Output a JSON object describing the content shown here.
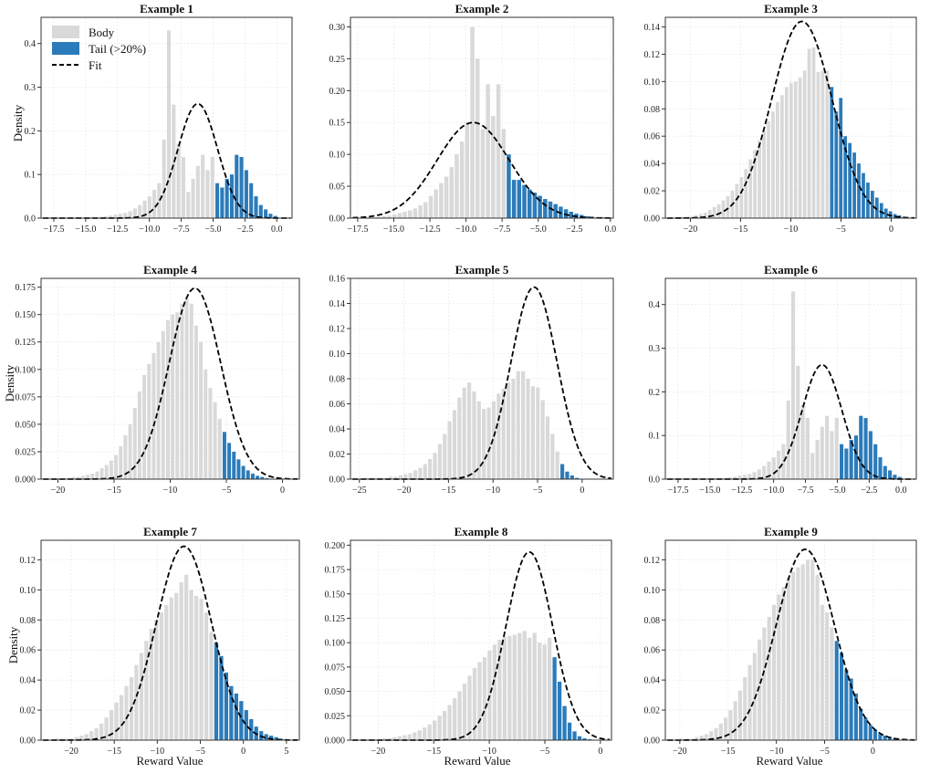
{
  "figure": {
    "legend": {
      "body_label": "Body",
      "tail_label": "Tail (>20%)",
      "fit_label": "Fit"
    },
    "ylabel": "Density",
    "xlabel": "Reward Value"
  },
  "colors": {
    "body": "#d9d9d9",
    "tail": "#2b7bba",
    "fit": "#000000",
    "grid": "#ebebeb",
    "axis": "#333333"
  },
  "chart_data": [
    {
      "type": "bar",
      "title": "Example 1",
      "xlim": [
        -18.5,
        1.2
      ],
      "ylim": [
        0,
        0.46
      ],
      "xticks": [
        -17.5,
        -15.0,
        -12.5,
        -10.0,
        -7.5,
        -5.0,
        -2.5,
        0.0
      ],
      "xtick_labels": [
        "−17.5",
        "−15.0",
        "−12.5",
        "−10.0",
        "−7.5",
        "−5.0",
        "−2.5",
        "0.0"
      ],
      "yticks": [
        0.0,
        0.1,
        0.2,
        0.3,
        0.4
      ],
      "ytick_labels": [
        "0.0",
        "0.1",
        "0.2",
        "0.3",
        "0.4"
      ],
      "bins": {
        "start": -17.4,
        "width": 0.38,
        "tail_from": -5.0,
        "values": [
          0.001,
          0.001,
          0.001,
          0.001,
          0.001,
          0.001,
          0.001,
          0.002,
          0.002,
          0.003,
          0.004,
          0.006,
          0.008,
          0.01,
          0.012,
          0.016,
          0.022,
          0.03,
          0.04,
          0.05,
          0.065,
          0.08,
          0.18,
          0.43,
          0.26,
          0.17,
          0.14,
          0.06,
          0.09,
          0.12,
          0.145,
          0.11,
          0.14,
          0.08,
          0.07,
          0.09,
          0.1,
          0.145,
          0.14,
          0.11,
          0.08,
          0.05,
          0.03,
          0.02,
          0.01,
          0.005
        ]
      },
      "fit": {
        "mean": -6.2,
        "std": 1.55,
        "peak": 0.262
      }
    },
    {
      "type": "bar",
      "title": "Example 2",
      "xlim": [
        -18.0,
        0.2
      ],
      "ylim": [
        0,
        0.315
      ],
      "xticks": [
        -17.5,
        -15.0,
        -12.5,
        -10.0,
        -7.5,
        -5.0,
        -2.5,
        0.0
      ],
      "xtick_labels": [
        "−17.5",
        "−15.0",
        "−12.5",
        "−10.0",
        "−7.5",
        "−5.0",
        "−2.5",
        "0.0"
      ],
      "yticks": [
        0.0,
        0.05,
        0.1,
        0.15,
        0.2,
        0.25,
        0.3
      ],
      "ytick_labels": [
        "0.00",
        "0.05",
        "0.10",
        "0.15",
        "0.20",
        "0.25",
        "0.30"
      ],
      "bins": {
        "start": -17.3,
        "width": 0.36,
        "tail_from": -7.5,
        "values": [
          0.001,
          0.001,
          0.001,
          0.002,
          0.003,
          0.004,
          0.006,
          0.008,
          0.01,
          0.012,
          0.015,
          0.02,
          0.025,
          0.035,
          0.045,
          0.055,
          0.065,
          0.08,
          0.1,
          0.12,
          0.15,
          0.3,
          0.25,
          0.14,
          0.21,
          0.16,
          0.21,
          0.14,
          0.1,
          0.06,
          0.06,
          0.052,
          0.045,
          0.04,
          0.035,
          0.03,
          0.026,
          0.022,
          0.018,
          0.014,
          0.01,
          0.007,
          0.005,
          0.003,
          0.002,
          0.001,
          0.001
        ]
      },
      "fit": {
        "mean": -9.5,
        "std": 2.5,
        "peak": 0.15
      }
    },
    {
      "type": "bar",
      "title": "Example 3",
      "xlim": [
        -22.5,
        2.5
      ],
      "ylim": [
        0,
        0.147
      ],
      "xticks": [
        -20,
        -15,
        -10,
        -5,
        0
      ],
      "xtick_labels": [
        "−20",
        "−15",
        "−10",
        "−5",
        "0"
      ],
      "yticks": [
        0.0,
        0.02,
        0.04,
        0.06,
        0.08,
        0.1,
        0.12,
        0.14
      ],
      "ytick_labels": [
        "0.00",
        "0.02",
        "0.04",
        "0.06",
        "0.08",
        "0.10",
        "0.12",
        "0.14"
      ],
      "bins": {
        "start": -21.0,
        "width": 0.45,
        "tail_from": -6.4,
        "values": [
          0.001,
          0.001,
          0.001,
          0.002,
          0.003,
          0.004,
          0.006,
          0.008,
          0.01,
          0.013,
          0.016,
          0.02,
          0.025,
          0.03,
          0.036,
          0.043,
          0.05,
          0.057,
          0.064,
          0.071,
          0.078,
          0.085,
          0.09,
          0.096,
          0.099,
          0.1,
          0.103,
          0.108,
          0.124,
          0.125,
          0.107,
          0.108,
          0.108,
          0.096,
          0.078,
          0.088,
          0.06,
          0.055,
          0.048,
          0.04,
          0.033,
          0.026,
          0.02,
          0.015,
          0.011,
          0.007,
          0.005,
          0.003,
          0.002,
          0.001
        ]
      },
      "fit": {
        "mean": -8.9,
        "std": 3.0,
        "peak": 0.144
      }
    },
    {
      "type": "bar",
      "title": "Example 4",
      "xlim": [
        -21.5,
        1.5
      ],
      "ylim": [
        0,
        0.183
      ],
      "xticks": [
        -20,
        -15,
        -10,
        -5,
        0
      ],
      "xtick_labels": [
        "−20",
        "−15",
        "−10",
        "−5",
        "0"
      ],
      "yticks": [
        0.0,
        0.025,
        0.05,
        0.075,
        0.1,
        0.125,
        0.15,
        0.175
      ],
      "ytick_labels": [
        "0.000",
        "0.025",
        "0.050",
        "0.075",
        "0.100",
        "0.125",
        "0.150",
        "0.175"
      ],
      "bins": {
        "start": -20.5,
        "width": 0.42,
        "tail_from": -5.6,
        "values": [
          0.001,
          0.001,
          0.001,
          0.001,
          0.002,
          0.002,
          0.003,
          0.004,
          0.005,
          0.007,
          0.01,
          0.013,
          0.017,
          0.022,
          0.03,
          0.04,
          0.05,
          0.065,
          0.08,
          0.095,
          0.105,
          0.115,
          0.125,
          0.135,
          0.145,
          0.15,
          0.152,
          0.16,
          0.165,
          0.16,
          0.14,
          0.125,
          0.1,
          0.083,
          0.07,
          0.055,
          0.043,
          0.033,
          0.025,
          0.018,
          0.012,
          0.008,
          0.005,
          0.003,
          0.002,
          0.001
        ]
      },
      "fit": {
        "mean": -7.8,
        "std": 2.3,
        "peak": 0.174
      }
    },
    {
      "type": "bar",
      "title": "Example 5",
      "xlim": [
        -26.0,
        3.5
      ],
      "ylim": [
        0,
        0.16
      ],
      "xticks": [
        -25,
        -20,
        -15,
        -10,
        -5,
        0
      ],
      "xtick_labels": [
        "−25",
        "−20",
        "−15",
        "−10",
        "−5",
        "0"
      ],
      "yticks": [
        0.0,
        0.02,
        0.04,
        0.06,
        0.08,
        0.1,
        0.12,
        0.14,
        0.16
      ],
      "ytick_labels": [
        "0.00",
        "0.02",
        "0.04",
        "0.06",
        "0.08",
        "0.10",
        "0.12",
        "0.14",
        "0.16"
      ],
      "bins": {
        "start": -24.5,
        "width": 0.55,
        "tail_from": -3.0,
        "values": [
          0.001,
          0.001,
          0.001,
          0.001,
          0.001,
          0.002,
          0.002,
          0.003,
          0.004,
          0.005,
          0.007,
          0.009,
          0.012,
          0.016,
          0.021,
          0.028,
          0.036,
          0.046,
          0.055,
          0.065,
          0.073,
          0.077,
          0.07,
          0.062,
          0.056,
          0.057,
          0.062,
          0.068,
          0.072,
          0.077,
          0.08,
          0.086,
          0.086,
          0.08,
          0.074,
          0.073,
          0.063,
          0.05,
          0.036,
          0.022,
          0.012,
          0.006,
          0.003,
          0.001
        ]
      },
      "fit": {
        "mean": -5.4,
        "std": 2.6,
        "peak": 0.153
      }
    },
    {
      "type": "bar",
      "title": "Example 6",
      "xlim": [
        -18.5,
        1.2
      ],
      "ylim": [
        0,
        0.46
      ],
      "xticks": [
        -17.5,
        -15.0,
        -12.5,
        -10.0,
        -7.5,
        -5.0,
        -2.5,
        0.0
      ],
      "xtick_labels": [
        "−17.5",
        "−15.0",
        "−12.5",
        "−10.0",
        "−7.5",
        "−5.0",
        "−2.5",
        "0.0"
      ],
      "yticks": [
        0.0,
        0.1,
        0.2,
        0.3,
        0.4
      ],
      "ytick_labels": [
        "0.0",
        "0.1",
        "0.2",
        "0.3",
        "0.4"
      ],
      "bins": {
        "start": -17.4,
        "width": 0.38,
        "tail_from": -5.0,
        "values": [
          0.001,
          0.001,
          0.001,
          0.001,
          0.001,
          0.001,
          0.001,
          0.002,
          0.002,
          0.003,
          0.004,
          0.006,
          0.008,
          0.01,
          0.012,
          0.016,
          0.022,
          0.03,
          0.04,
          0.05,
          0.065,
          0.08,
          0.18,
          0.43,
          0.26,
          0.17,
          0.14,
          0.06,
          0.09,
          0.12,
          0.145,
          0.11,
          0.14,
          0.08,
          0.07,
          0.09,
          0.1,
          0.145,
          0.14,
          0.11,
          0.08,
          0.05,
          0.03,
          0.02,
          0.01,
          0.005
        ]
      },
      "fit": {
        "mean": -6.2,
        "std": 1.55,
        "peak": 0.262
      }
    },
    {
      "type": "bar",
      "title": "Example 7",
      "xlim": [
        -23.5,
        6.5
      ],
      "ylim": [
        0,
        0.133
      ],
      "xticks": [
        -20,
        -15,
        -10,
        -5,
        0,
        5
      ],
      "xtick_labels": [
        "−20",
        "−15",
        "−10",
        "−5",
        "0",
        "5"
      ],
      "yticks": [
        0.0,
        0.02,
        0.04,
        0.06,
        0.08,
        0.1,
        0.12
      ],
      "ytick_labels": [
        "0.00",
        "0.02",
        "0.04",
        "0.06",
        "0.08",
        "0.10",
        "0.12"
      ],
      "bins": {
        "start": -22.0,
        "width": 0.58,
        "tail_from": -4.0,
        "values": [
          0.001,
          0.001,
          0.001,
          0.001,
          0.002,
          0.003,
          0.004,
          0.006,
          0.008,
          0.011,
          0.015,
          0.02,
          0.025,
          0.03,
          0.036,
          0.042,
          0.05,
          0.058,
          0.066,
          0.074,
          0.08,
          0.085,
          0.09,
          0.095,
          0.098,
          0.105,
          0.11,
          0.1,
          0.096,
          0.094,
          0.085,
          0.072,
          0.065,
          0.056,
          0.045,
          0.036,
          0.031,
          0.026,
          0.02,
          0.014,
          0.009,
          0.006,
          0.004,
          0.003,
          0.002,
          0.001
        ]
      },
      "fit": {
        "mean": -6.9,
        "std": 3.2,
        "peak": 0.129
      }
    },
    {
      "type": "bar",
      "title": "Example 8",
      "xlim": [
        -22.5,
        1.0
      ],
      "ylim": [
        0,
        0.205
      ],
      "xticks": [
        -20,
        -15,
        -10,
        -5,
        0
      ],
      "xtick_labels": [
        "−20",
        "−15",
        "−10",
        "−5",
        "0"
      ],
      "yticks": [
        0.0,
        0.025,
        0.05,
        0.075,
        0.1,
        0.125,
        0.15,
        0.175,
        0.2
      ],
      "ytick_labels": [
        "0.000",
        "0.025",
        "0.050",
        "0.075",
        "0.100",
        "0.125",
        "0.150",
        "0.175",
        "0.200"
      ],
      "bins": {
        "start": -21.0,
        "width": 0.45,
        "tail_from": -4.7,
        "values": [
          0.001,
          0.001,
          0.001,
          0.002,
          0.002,
          0.003,
          0.004,
          0.005,
          0.006,
          0.008,
          0.01,
          0.013,
          0.016,
          0.02,
          0.025,
          0.03,
          0.036,
          0.043,
          0.05,
          0.058,
          0.066,
          0.074,
          0.08,
          0.085,
          0.092,
          0.098,
          0.103,
          0.106,
          0.107,
          0.108,
          0.11,
          0.112,
          0.105,
          0.11,
          0.1,
          0.098,
          0.105,
          0.085,
          0.06,
          0.035,
          0.018,
          0.009,
          0.004,
          0.002,
          0.001
        ]
      },
      "fit": {
        "mean": -6.4,
        "std": 2.1,
        "peak": 0.193
      }
    },
    {
      "type": "bar",
      "title": "Example 9",
      "xlim": [
        -21.5,
        4.5
      ],
      "ylim": [
        0,
        0.133
      ],
      "xticks": [
        -20,
        -15,
        -10,
        -5,
        0
      ],
      "xtick_labels": [
        "−20",
        "−15",
        "−10",
        "−5",
        "0"
      ],
      "yticks": [
        0.0,
        0.02,
        0.04,
        0.06,
        0.08,
        0.1,
        0.12
      ],
      "ytick_labels": [
        "0.00",
        "0.02",
        "0.04",
        "0.06",
        "0.08",
        "0.10",
        "0.12"
      ],
      "bins": {
        "start": -20.0,
        "width": 0.5,
        "tail_from": -4.4,
        "values": [
          0.001,
          0.001,
          0.001,
          0.002,
          0.003,
          0.004,
          0.006,
          0.008,
          0.011,
          0.015,
          0.02,
          0.026,
          0.033,
          0.042,
          0.05,
          0.058,
          0.067,
          0.075,
          0.082,
          0.09,
          0.097,
          0.102,
          0.108,
          0.112,
          0.115,
          0.117,
          0.12,
          0.12,
          0.11,
          0.09,
          0.085,
          0.075,
          0.066,
          0.058,
          0.047,
          0.041,
          0.031,
          0.021,
          0.015,
          0.01,
          0.007,
          0.004,
          0.003,
          0.002,
          0.001
        ]
      },
      "fit": {
        "mean": -7.0,
        "std": 3.0,
        "peak": 0.127
      }
    }
  ]
}
